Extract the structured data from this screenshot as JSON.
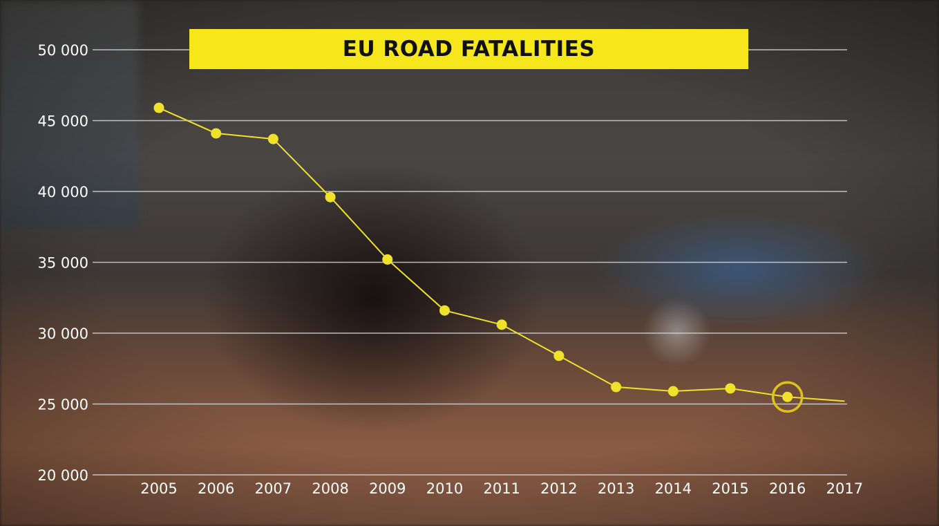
{
  "title": "EU ROAD FATALITIES",
  "colors": {
    "accent": "#f5e71c",
    "line": "#f0e12a",
    "grid": "#d8d8d8",
    "text": "#ffffff",
    "title_text": "#111111"
  },
  "chart_data": {
    "type": "line",
    "title": "EU ROAD FATALITIES",
    "xlabel": "",
    "ylabel": "",
    "categories": [
      "2005",
      "2006",
      "2007",
      "2008",
      "2009",
      "2010",
      "2011",
      "2012",
      "2013",
      "2014",
      "2015",
      "2016",
      "2017"
    ],
    "y_ticks": [
      20000,
      25000,
      30000,
      35000,
      40000,
      45000,
      50000
    ],
    "y_tick_labels": [
      "20 000",
      "25 000",
      "30 000",
      "35 000",
      "40 000",
      "45 000",
      "50 000"
    ],
    "ylim": [
      20000,
      50000
    ],
    "grid": true,
    "series": [
      {
        "values": [
          45900,
          44100,
          43700,
          39600,
          35200,
          31600,
          30600,
          28400,
          26200,
          25900,
          26100,
          25500,
          25200
        ],
        "markers": [
          true,
          true,
          true,
          true,
          true,
          true,
          true,
          true,
          true,
          true,
          true,
          true,
          false
        ],
        "highlighted": "2016"
      }
    ]
  }
}
